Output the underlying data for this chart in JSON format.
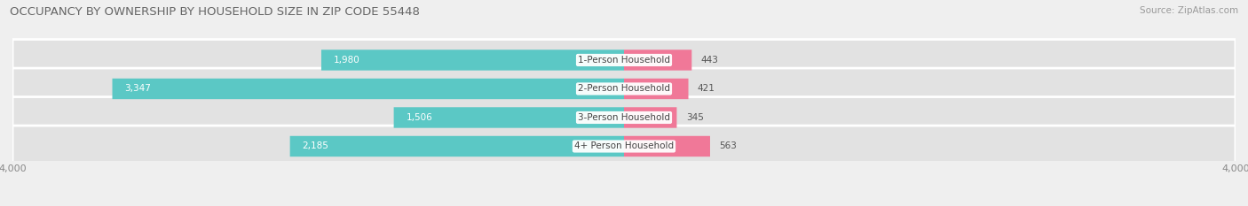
{
  "title": "OCCUPANCY BY OWNERSHIP BY HOUSEHOLD SIZE IN ZIP CODE 55448",
  "source": "Source: ZipAtlas.com",
  "categories": [
    "1-Person Household",
    "2-Person Household",
    "3-Person Household",
    "4+ Person Household"
  ],
  "owner_values": [
    1980,
    3347,
    1506,
    2185
  ],
  "renter_values": [
    443,
    421,
    345,
    563
  ],
  "owner_color": "#5BC8C5",
  "renter_color": "#F07898",
  "axis_max": 4000,
  "bg_color": "#efefef",
  "bar_bg_color": "#e2e2e2",
  "bar_bg_color2": "#d8d8d8",
  "title_fontsize": 9.5,
  "source_fontsize": 7.5,
  "tick_label_fontsize": 8,
  "bar_label_fontsize": 7.5,
  "category_fontsize": 7.5,
  "legend_fontsize": 7.5,
  "legend_color_owner": "#4CBFBC",
  "legend_color_renter": "#F07898"
}
